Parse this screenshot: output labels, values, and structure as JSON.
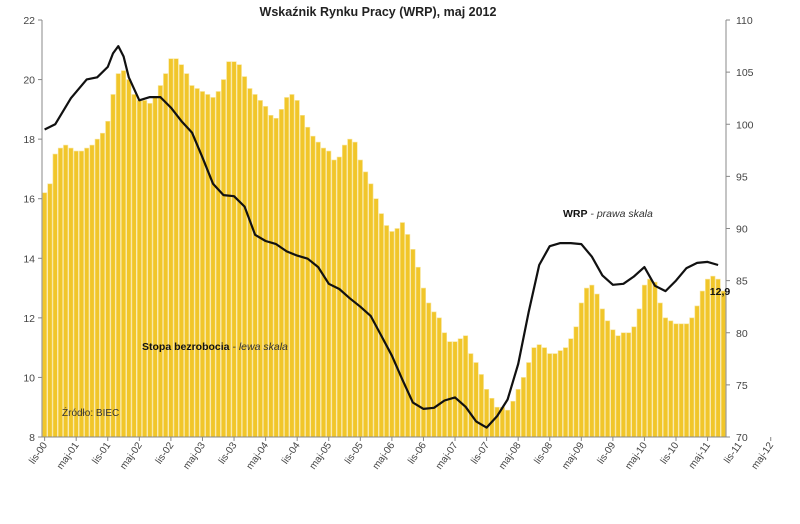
{
  "chart_data": {
    "type": "bar+line",
    "title": "Wskaźnik Rynku Pracy (WRP), maj 2012",
    "source": "Źródło: BIEC",
    "left_axis": {
      "ylim": [
        8,
        22
      ],
      "ticks": [
        "8",
        "10",
        "12",
        "14",
        "16",
        "18",
        "20",
        "22"
      ]
    },
    "right_axis": {
      "ylim": [
        70,
        110
      ],
      "ticks": [
        "70",
        "75",
        "80",
        "85",
        "90",
        "95",
        "100",
        "105",
        "110"
      ]
    },
    "x_tick_labels": [
      "lis-00",
      "maj-01",
      "lis-01",
      "maj-02",
      "lis-02",
      "maj-03",
      "lis-03",
      "maj-04",
      "lis-04",
      "maj-05",
      "lis-05",
      "maj-06",
      "lis-06",
      "maj-07",
      "lis-07",
      "maj-08",
      "lis-08",
      "maj-09",
      "lis-09",
      "maj-10",
      "lis-10",
      "maj-11",
      "lis-11",
      "maj-12"
    ],
    "annotations": {
      "bars_label_bold": "Stopa bezrobocia",
      "bars_label_italic": " - lewa skala",
      "line_label_bold": "WRP",
      "line_label_italic": " - prawa skala",
      "last_value_label": "12,9"
    },
    "series": [
      {
        "name": "Stopa bezrobocia",
        "axis": "left",
        "kind": "bar",
        "values": [
          16.2,
          16.5,
          17.5,
          17.7,
          17.8,
          17.7,
          17.6,
          17.6,
          17.7,
          17.8,
          18.0,
          18.2,
          18.6,
          19.5,
          20.2,
          20.3,
          20.0,
          19.5,
          19.3,
          19.3,
          19.2,
          19.4,
          19.8,
          20.2,
          20.7,
          20.7,
          20.5,
          20.2,
          19.8,
          19.7,
          19.6,
          19.5,
          19.4,
          19.6,
          20.0,
          20.6,
          20.6,
          20.5,
          20.1,
          19.7,
          19.5,
          19.3,
          19.1,
          18.8,
          18.7,
          19.0,
          19.4,
          19.5,
          19.3,
          18.8,
          18.4,
          18.1,
          17.9,
          17.7,
          17.6,
          17.3,
          17.4,
          17.8,
          18.0,
          17.9,
          17.3,
          16.9,
          16.5,
          16.0,
          15.5,
          15.1,
          14.9,
          15.0,
          15.2,
          14.8,
          14.3,
          13.7,
          13.0,
          12.5,
          12.2,
          12.0,
          11.5,
          11.2,
          11.2,
          11.3,
          11.4,
          10.8,
          10.5,
          10.1,
          9.6,
          9.3,
          9.0,
          9.0,
          8.9,
          9.2,
          9.6,
          10.0,
          10.5,
          11.0,
          11.1,
          11.0,
          10.8,
          10.8,
          10.9,
          11.0,
          11.3,
          11.7,
          12.5,
          13.0,
          13.1,
          12.8,
          12.3,
          11.9,
          11.6,
          11.4,
          11.5,
          11.5,
          11.7,
          12.3,
          13.1,
          13.3,
          13.2,
          12.5,
          12.0,
          11.9,
          11.8,
          11.8,
          11.8,
          12.0,
          12.4,
          12.9,
          13.3,
          13.4,
          13.3,
          12.9
        ]
      },
      {
        "name": "WRP",
        "axis": "right",
        "kind": "line",
        "x": [
          0,
          2,
          5,
          8,
          10,
          12,
          13,
          14,
          15,
          16,
          18,
          20,
          22,
          24,
          26,
          28,
          30,
          32,
          34,
          36,
          38,
          40,
          42,
          44,
          46,
          48,
          50,
          52,
          54,
          56,
          58,
          60,
          62,
          64,
          66,
          68,
          70,
          72,
          74,
          76,
          78,
          80,
          82,
          84,
          86,
          88,
          90,
          92,
          94,
          96,
          98,
          100,
          102,
          104,
          106,
          108,
          110,
          112,
          114,
          116,
          118,
          120,
          122,
          124,
          126,
          128
        ],
        "values": [
          99.5,
          100.0,
          102.5,
          104.3,
          104.5,
          105.5,
          106.8,
          107.5,
          106.5,
          104.5,
          102.3,
          102.6,
          102.6,
          101.6,
          100.3,
          99.2,
          96.8,
          94.3,
          93.2,
          93.1,
          92.1,
          89.4,
          88.8,
          88.5,
          87.8,
          87.4,
          87.1,
          86.3,
          84.7,
          84.2,
          83.3,
          82.5,
          81.6,
          79.7,
          77.8,
          75.5,
          73.3,
          72.7,
          72.8,
          73.5,
          73.8,
          72.9,
          71.5,
          70.9,
          72.0,
          73.6,
          77.0,
          82.0,
          86.5,
          88.3,
          88.6,
          88.6,
          88.5,
          87.3,
          85.5,
          84.6,
          84.7,
          85.4,
          86.3,
          84.5,
          84.0,
          85.0,
          86.2,
          86.7,
          86.8,
          86.5
        ]
      }
    ]
  }
}
